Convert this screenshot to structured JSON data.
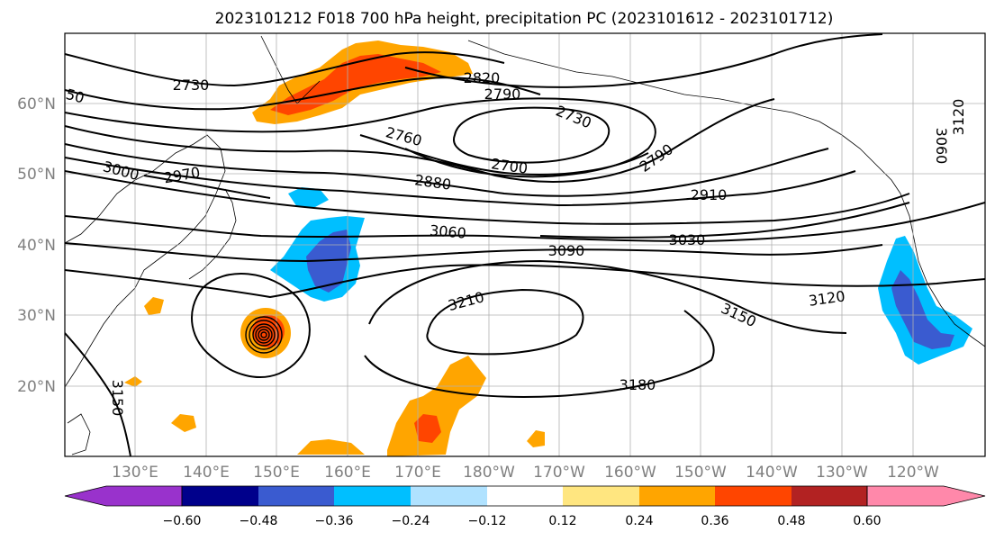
{
  "title": "2023101212 F018 700 hPa height, precipitation PC (2023101612 - 2023101712)",
  "map": {
    "lat_labels": [
      "60°N",
      "50°N",
      "40°N",
      "30°N",
      "20°N"
    ],
    "lon_labels": [
      "130°E",
      "140°E",
      "150°E",
      "160°E",
      "170°E",
      "180°W",
      "170°W",
      "160°W",
      "150°W",
      "140°W",
      "130°W",
      "120°W"
    ],
    "contour_labels": [
      "2730",
      "2820",
      "2790",
      "2730",
      "2760",
      "2700",
      "2790",
      "2880",
      "2910",
      "3000",
      "2970",
      "3060",
      "3090",
      "3030",
      "3210",
      "3150",
      "3120",
      "3180",
      "3150",
      "3120",
      "3060",
      "50"
    ],
    "colors": {
      "land_outline": "#000000",
      "grid": "#b0b0b0",
      "contour": "#000000"
    }
  },
  "colorbar": {
    "ticks": [
      "−0.60",
      "−0.48",
      "−0.36",
      "−0.24",
      "−0.12",
      "0.12",
      "0.24",
      "0.36",
      "0.48",
      "0.60"
    ],
    "colors": [
      "#9932cc",
      "#00008b",
      "#3a5bd0",
      "#00bfff",
      "#b0e2ff",
      "#ffffff",
      "#ffe680",
      "#ffa500",
      "#ff4500",
      "#b22222",
      "#ff88aa"
    ]
  }
}
